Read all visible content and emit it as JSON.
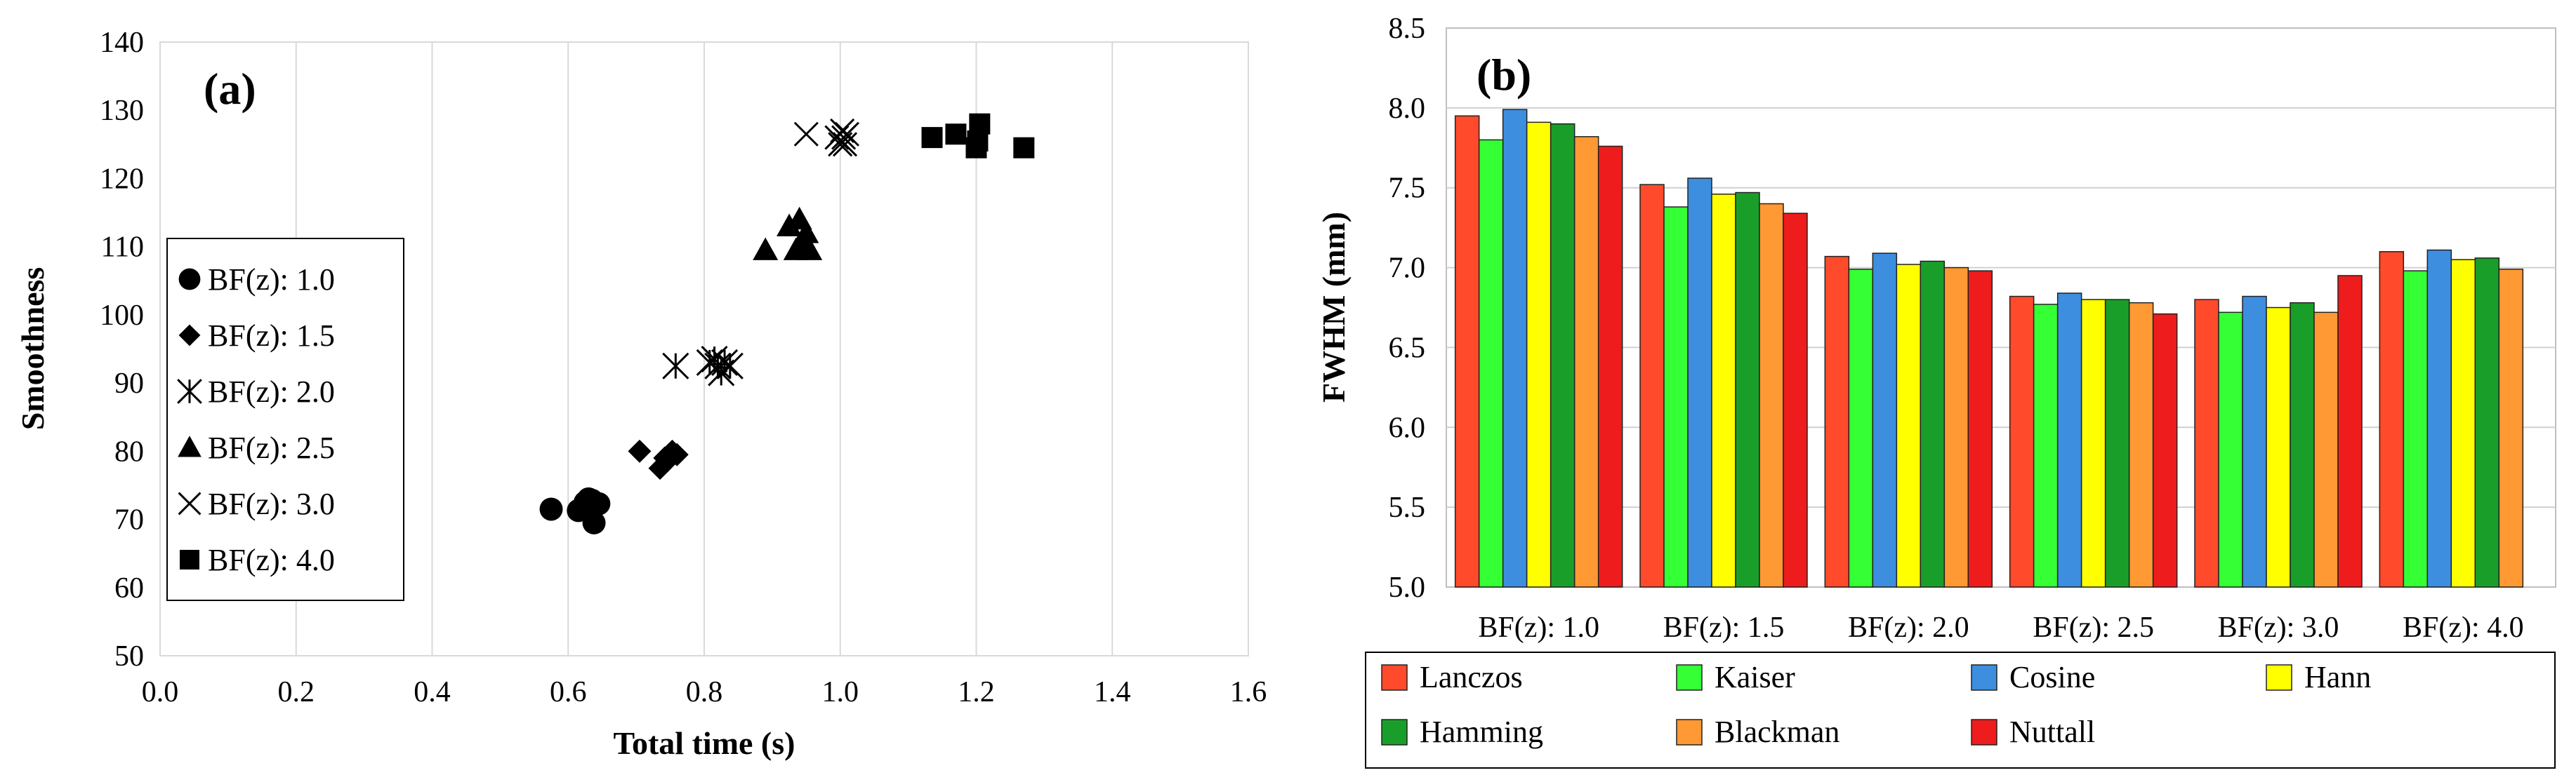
{
  "chart_data": [
    {
      "type": "scatter",
      "panel_label": "(a)",
      "xlabel": "Total time (s)",
      "ylabel": "Smoothness",
      "xlim": [
        0.0,
        1.6
      ],
      "ylim": [
        50,
        140
      ],
      "xticks": [
        "0.0",
        "0.2",
        "0.4",
        "0.6",
        "0.8",
        "1.0",
        "1.2",
        "1.4",
        "1.6"
      ],
      "yticks": [
        "50",
        "60",
        "70",
        "80",
        "90",
        "100",
        "110",
        "120",
        "130",
        "140"
      ],
      "grid": "vertical",
      "legend_position": "left",
      "series": [
        {
          "name": "BF(z): 1.0",
          "marker": "circle",
          "points": [
            [
              0.575,
              71.5
            ],
            [
              0.615,
              71.3
            ],
            [
              0.625,
              72.5
            ],
            [
              0.63,
              73.0
            ],
            [
              0.635,
              72.8
            ],
            [
              0.64,
              72.0
            ],
            [
              0.645,
              72.3
            ],
            [
              0.638,
              69.5
            ]
          ]
        },
        {
          "name": "BF(z): 1.5",
          "marker": "diamond",
          "points": [
            [
              0.705,
              80.0
            ],
            [
              0.735,
              77.5
            ],
            [
              0.742,
              79.0
            ],
            [
              0.748,
              79.5
            ],
            [
              0.753,
              80.0
            ],
            [
              0.76,
              79.5
            ],
            [
              0.745,
              78.5
            ]
          ]
        },
        {
          "name": "BF(z): 2.0",
          "marker": "asterisk",
          "points": [
            [
              0.758,
              92.5
            ],
            [
              0.808,
              93.0
            ],
            [
              0.815,
              93.5
            ],
            [
              0.82,
              92.5
            ],
            [
              0.825,
              91.5
            ],
            [
              0.83,
              93.0
            ],
            [
              0.838,
              92.5
            ]
          ]
        },
        {
          "name": "BF(z): 2.5",
          "marker": "triangle",
          "points": [
            [
              0.89,
              109.5
            ],
            [
              0.925,
              113.0
            ],
            [
              0.935,
              109.5
            ],
            [
              0.94,
              114.0
            ],
            [
              0.945,
              110.0
            ],
            [
              0.95,
              112.0
            ],
            [
              0.955,
              109.5
            ]
          ]
        },
        {
          "name": "BF(z): 3.0",
          "marker": "x",
          "points": [
            [
              0.95,
              126.5
            ],
            [
              0.995,
              126.0
            ],
            [
              1.0,
              125.0
            ],
            [
              1.003,
              127.0
            ],
            [
              1.005,
              126.0
            ],
            [
              1.007,
              125.0
            ],
            [
              1.01,
              126.5
            ]
          ]
        },
        {
          "name": "BF(z): 4.0",
          "marker": "square",
          "points": [
            [
              1.135,
              126.0
            ],
            [
              1.17,
              126.5
            ],
            [
              1.2,
              124.5
            ],
            [
              1.202,
              125.5
            ],
            [
              1.205,
              128.0
            ],
            [
              1.27,
              124.5
            ]
          ]
        }
      ]
    },
    {
      "type": "bar",
      "panel_label": "(b)",
      "xlabel": "",
      "ylabel": "FWHM (mm)",
      "ylim": [
        5.0,
        8.5
      ],
      "yticks": [
        "5.0",
        "5.5",
        "6.0",
        "6.5",
        "7.0",
        "7.5",
        "8.0",
        "8.5"
      ],
      "grid": "horizontal",
      "legend_position": "bottom",
      "categories": [
        "BF(z): 1.0",
        "BF(z): 1.5",
        "BF(z): 2.0",
        "BF(z): 2.5",
        "BF(z): 3.0",
        "BF(z): 4.0"
      ],
      "series": [
        {
          "name": "Lanczos",
          "color": "#ff4b2b",
          "values": [
            7.95,
            7.52,
            7.07,
            6.82,
            6.8,
            7.1
          ]
        },
        {
          "name": "Kaiser",
          "color": "#35ff35",
          "values": [
            7.8,
            7.38,
            6.99,
            6.77,
            6.72,
            6.98
          ]
        },
        {
          "name": "Cosine",
          "color": "#3d8ede",
          "values": [
            7.99,
            7.56,
            7.09,
            6.84,
            6.82,
            7.11
          ]
        },
        {
          "name": "Hann",
          "color": "#ffff00",
          "values": [
            7.91,
            7.46,
            7.02,
            6.8,
            6.75,
            7.05
          ]
        },
        {
          "name": "Hamming",
          "color": "#1a9e2a",
          "values": [
            7.9,
            7.47,
            7.04,
            6.8,
            6.78,
            7.06
          ]
        },
        {
          "name": "Blackman",
          "color": "#ff9933",
          "values": [
            7.82,
            7.4,
            7.0,
            6.78,
            6.72,
            6.99
          ]
        },
        {
          "name": "Nuttall",
          "color": "#ee1c1c",
          "values": [
            7.76,
            7.34,
            6.98,
            6.71,
            6.95,
            null
          ]
        }
      ]
    }
  ]
}
